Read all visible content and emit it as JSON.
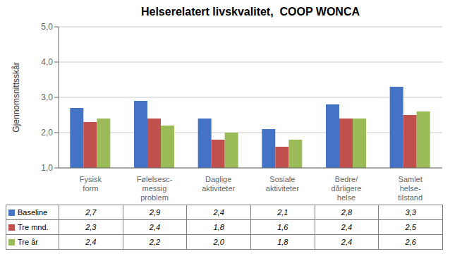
{
  "chart_data": {
    "type": "bar",
    "title": "Helserelatert livskvalitet,  COOP WONCA",
    "y_label": "Gjennomsnittsskår",
    "categories": [
      "Fysisk\nform",
      "Følelsesс-\nmessig\nproblem",
      "Daglige\naktiviteter",
      "Sosiale\naktiviteter",
      "Bedre/\ndårligere\nhelse",
      "Samlet\nhelse-\ntilstand"
    ],
    "series": [
      {
        "name": "Baseline",
        "color": "#4472C4",
        "values": [
          2.7,
          2.9,
          2.4,
          2.1,
          2.8,
          3.3
        ],
        "value_labels": [
          "2,7",
          "2,9",
          "2,4",
          "2,1",
          "2,8",
          "3,3"
        ]
      },
      {
        "name": "Tre mnd.",
        "color": "#C0504D",
        "values": [
          2.3,
          2.4,
          1.8,
          1.6,
          2.4,
          2.5
        ],
        "value_labels": [
          "2,3",
          "2,4",
          "1,8",
          "1,6",
          "2,4",
          "2,5"
        ]
      },
      {
        "name": "Tre år",
        "color": "#9BBB59",
        "values": [
          2.4,
          2.2,
          2.0,
          1.8,
          2.4,
          2.6
        ],
        "value_labels": [
          "2,4",
          "2,2",
          "2,0",
          "1,8",
          "2,4",
          "2,6"
        ]
      }
    ],
    "ylim": [
      1.0,
      5.0
    ],
    "yticks": [
      {
        "value": 1.0,
        "label": "1,0"
      },
      {
        "value": 2.0,
        "label": "2,0"
      },
      {
        "value": 3.0,
        "label": "3,0"
      },
      {
        "value": 4.0,
        "label": "4,0"
      },
      {
        "value": 5.0,
        "label": "5,0"
      }
    ],
    "grid": true
  }
}
